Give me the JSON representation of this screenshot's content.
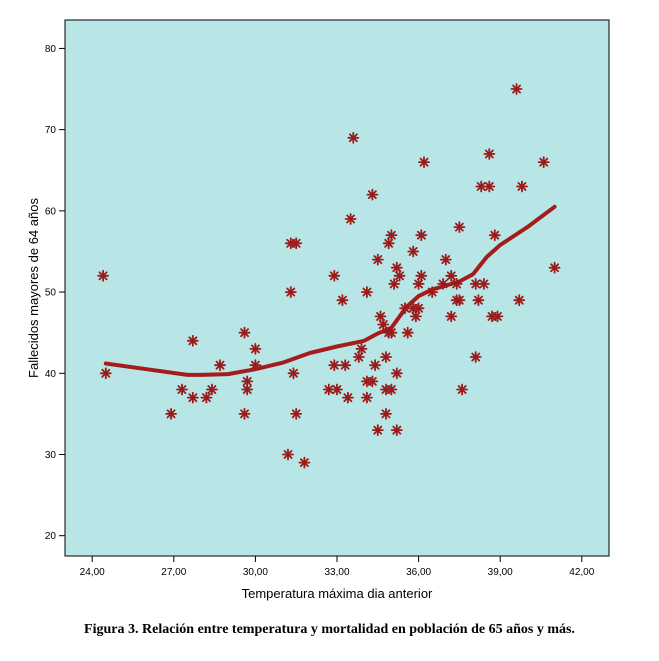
{
  "caption": "Figura 3. Relación entre temperatura y mortalidad en población de 65 años y más.",
  "colors": {
    "plot_background": "#b8e6e6",
    "marker": "#9b1b1b",
    "fit_line": "#a51c1c"
  },
  "chart_data": {
    "type": "scatter",
    "xlabel": "Temperatura máxima dia anterior",
    "ylabel": "Fallecidos mayores de 64 años",
    "xlim": [
      23.0,
      43.0
    ],
    "ylim": [
      17.5,
      83.5
    ],
    "xticks": [
      24,
      27,
      30,
      33,
      36,
      39,
      42
    ],
    "xtick_labels": [
      "24,00",
      "27,00",
      "30,00",
      "33,00",
      "36,00",
      "39,00",
      "42,00"
    ],
    "yticks": [
      20,
      30,
      40,
      50,
      60,
      70,
      80
    ],
    "ytick_labels": [
      "20",
      "30",
      "40",
      "50",
      "60",
      "70",
      "80"
    ],
    "marker": "asterisk",
    "grid": false,
    "points": [
      [
        24.4,
        52
      ],
      [
        24.5,
        40
      ],
      [
        26.9,
        35
      ],
      [
        27.3,
        38
      ],
      [
        27.7,
        44
      ],
      [
        27.7,
        37
      ],
      [
        28.2,
        37
      ],
      [
        28.4,
        38
      ],
      [
        28.7,
        41
      ],
      [
        29.6,
        45
      ],
      [
        29.6,
        35
      ],
      [
        29.7,
        39
      ],
      [
        29.7,
        38
      ],
      [
        30.0,
        41
      ],
      [
        30.0,
        43
      ],
      [
        31.2,
        30
      ],
      [
        31.3,
        56
      ],
      [
        31.3,
        50
      ],
      [
        31.4,
        40
      ],
      [
        31.5,
        56
      ],
      [
        31.5,
        35
      ],
      [
        31.8,
        29
      ],
      [
        32.7,
        38
      ],
      [
        32.9,
        52
      ],
      [
        32.9,
        41
      ],
      [
        33.0,
        38
      ],
      [
        33.2,
        49
      ],
      [
        33.3,
        41
      ],
      [
        33.4,
        37
      ],
      [
        33.5,
        59
      ],
      [
        33.6,
        69
      ],
      [
        33.8,
        42
      ],
      [
        33.9,
        43
      ],
      [
        34.1,
        50
      ],
      [
        34.1,
        37
      ],
      [
        34.1,
        39
      ],
      [
        34.3,
        62
      ],
      [
        34.3,
        39
      ],
      [
        34.4,
        41
      ],
      [
        34.5,
        54
      ],
      [
        34.5,
        33
      ],
      [
        34.6,
        47
      ],
      [
        34.7,
        46
      ],
      [
        34.8,
        42
      ],
      [
        34.8,
        38
      ],
      [
        34.8,
        35
      ],
      [
        34.9,
        56
      ],
      [
        34.9,
        45
      ],
      [
        35.0,
        57
      ],
      [
        35.0,
        45
      ],
      [
        35.0,
        38
      ],
      [
        35.1,
        51
      ],
      [
        35.2,
        53
      ],
      [
        35.2,
        40
      ],
      [
        35.2,
        33
      ],
      [
        35.3,
        52
      ],
      [
        35.5,
        48
      ],
      [
        35.6,
        45
      ],
      [
        35.8,
        55
      ],
      [
        35.8,
        48
      ],
      [
        35.9,
        47
      ],
      [
        36.0,
        51
      ],
      [
        36.0,
        48
      ],
      [
        36.1,
        52
      ],
      [
        36.1,
        57
      ],
      [
        36.2,
        66
      ],
      [
        36.5,
        50
      ],
      [
        36.9,
        51
      ],
      [
        37.0,
        54
      ],
      [
        37.2,
        52
      ],
      [
        37.2,
        47
      ],
      [
        37.4,
        49
      ],
      [
        37.4,
        51
      ],
      [
        37.5,
        58
      ],
      [
        37.5,
        49
      ],
      [
        37.6,
        38
      ],
      [
        38.1,
        51
      ],
      [
        38.1,
        42
      ],
      [
        38.2,
        49
      ],
      [
        38.3,
        63
      ],
      [
        38.4,
        51
      ],
      [
        38.6,
        63
      ],
      [
        38.6,
        67
      ],
      [
        38.7,
        47
      ],
      [
        38.8,
        57
      ],
      [
        38.9,
        47
      ],
      [
        39.6,
        75
      ],
      [
        39.7,
        49
      ],
      [
        39.8,
        63
      ],
      [
        40.6,
        66
      ],
      [
        41.0,
        53
      ]
    ],
    "fit_line": [
      [
        24.5,
        41.2
      ],
      [
        26.0,
        40.5
      ],
      [
        27.5,
        39.8
      ],
      [
        28.0,
        39.8
      ],
      [
        29.0,
        39.9
      ],
      [
        30.0,
        40.5
      ],
      [
        31.0,
        41.3
      ],
      [
        32.0,
        42.5
      ],
      [
        33.0,
        43.3
      ],
      [
        34.0,
        44.0
      ],
      [
        34.5,
        44.9
      ],
      [
        35.0,
        45.6
      ],
      [
        35.3,
        47.0
      ],
      [
        35.6,
        48.3
      ],
      [
        36.0,
        49.5
      ],
      [
        36.5,
        50.3
      ],
      [
        37.0,
        50.8
      ],
      [
        37.5,
        51.3
      ],
      [
        38.0,
        52.2
      ],
      [
        38.5,
        54.3
      ],
      [
        39.0,
        55.8
      ],
      [
        40.0,
        58.0
      ],
      [
        41.0,
        60.5
      ]
    ]
  }
}
